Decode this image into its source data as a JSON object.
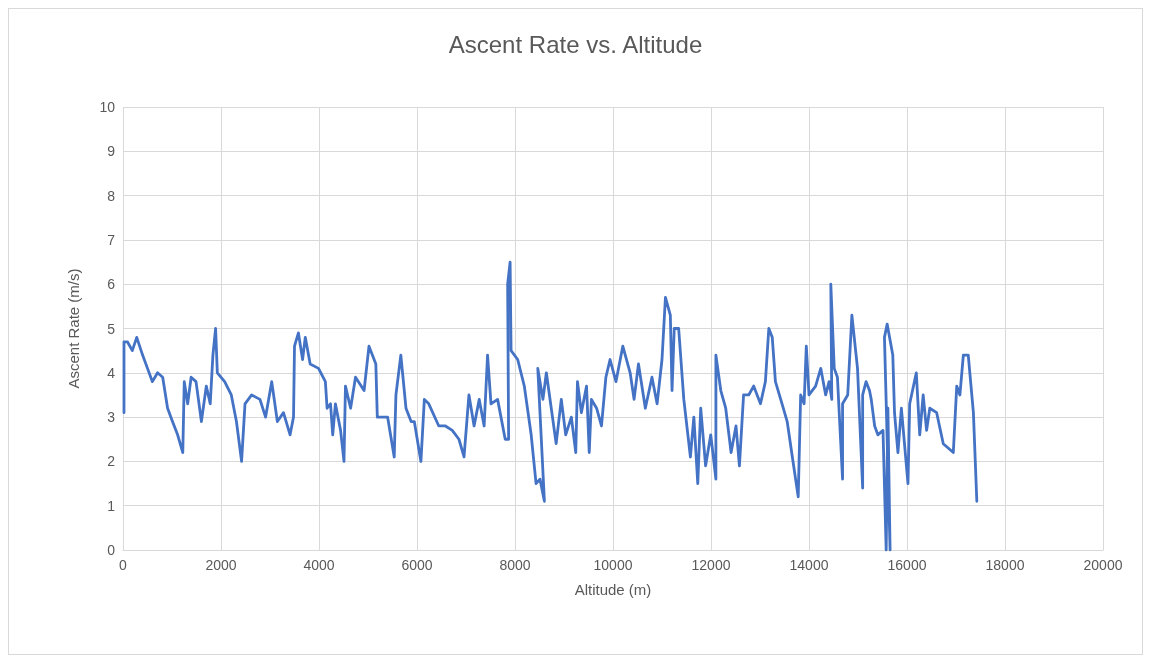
{
  "chart_data": {
    "type": "line",
    "title": "Ascent Rate vs. Altitude",
    "xlabel": "Altitude (m)",
    "ylabel": "Ascent Rate (m/s)",
    "xlim": [
      0,
      20000
    ],
    "ylim": [
      0,
      10
    ],
    "xticks": [
      0,
      2000,
      4000,
      6000,
      8000,
      10000,
      12000,
      14000,
      16000,
      18000,
      20000
    ],
    "yticks": [
      0,
      1,
      2,
      3,
      4,
      5,
      6,
      7,
      8,
      9,
      10
    ],
    "grid": true,
    "marker": "none",
    "line_style": "solid",
    "series": [
      {
        "color": "#4472c4",
        "x": [
          20,
          20,
          90,
          190,
          280,
          400,
          500,
          600,
          705,
          810,
          910,
          1010,
          1115,
          1220,
          1250,
          1320,
          1390,
          1490,
          1600,
          1700,
          1780,
          1835,
          1890,
          1925,
          2075,
          2210,
          2315,
          2420,
          2490,
          2625,
          2795,
          2910,
          3035,
          3150,
          3275,
          3410,
          3480,
          3500,
          3580,
          3665,
          3720,
          3820,
          3990,
          4130,
          4165,
          4235,
          4280,
          4335,
          4440,
          4510,
          4540,
          4645,
          4745,
          4920,
          5020,
          5160,
          5190,
          5400,
          5535,
          5570,
          5670,
          5775,
          5880,
          5945,
          6080,
          6150,
          6240,
          6445,
          6580,
          6720,
          6856,
          6960,
          7060,
          7165,
          7270,
          7370,
          7440,
          7510,
          7645,
          7800,
          7870,
          7850,
          7900,
          7920,
          8055,
          8190,
          8330,
          8430,
          8510,
          8600,
          8465,
          8570,
          8640,
          8740,
          8840,
          8945,
          9035,
          9150,
          9240,
          9275,
          9355,
          9460,
          9515,
          9560,
          9665,
          9765,
          9855,
          9940,
          10060,
          10200,
          10350,
          10430,
          10520,
          10660,
          10795,
          10900,
          11000,
          11070,
          11170,
          11205,
          11250,
          11340,
          11445,
          11580,
          11650,
          11730,
          11790,
          11890,
          11995,
          12100,
          12100,
          12200,
          12300,
          12410,
          12510,
          12580,
          12665,
          12770,
          12870,
          13010,
          13110,
          13180,
          13250,
          13315,
          13450,
          13555,
          13660,
          13780,
          13830,
          13900,
          13945,
          14000,
          14135,
          14240,
          14340,
          14410,
          14465,
          14445,
          14515,
          14580,
          14685,
          14685,
          14790,
          14875,
          14990,
          15095,
          15095,
          15165,
          15235,
          15270,
          15340,
          15405,
          15510,
          15575,
          15610,
          15655,
          15540,
          15595,
          15710,
          15745,
          15815,
          15885,
          16020,
          16055,
          16190,
          16260,
          16330,
          16400,
          16465,
          16605,
          16740,
          16945,
          17015,
          17080,
          17150,
          17250,
          17355,
          17425
        ],
        "values": [
          3.1,
          4.7,
          4.7,
          4.5,
          4.8,
          4.4,
          4.1,
          3.8,
          4.0,
          3.9,
          3.2,
          2.9,
          2.6,
          2.2,
          3.8,
          3.3,
          3.9,
          3.8,
          2.9,
          3.7,
          3.3,
          4.4,
          5.0,
          4.0,
          3.8,
          3.5,
          2.9,
          2.0,
          3.3,
          3.5,
          3.4,
          3.0,
          3.8,
          2.9,
          3.1,
          2.6,
          3.0,
          4.6,
          4.9,
          4.3,
          4.8,
          4.2,
          4.1,
          3.8,
          3.2,
          3.3,
          2.6,
          3.3,
          2.7,
          2.0,
          3.7,
          3.2,
          3.9,
          3.6,
          4.6,
          4.2,
          3.0,
          3.0,
          2.1,
          3.5,
          4.4,
          3.2,
          2.9,
          2.9,
          2.0,
          3.4,
          3.3,
          2.8,
          2.8,
          2.7,
          2.5,
          2.1,
          3.5,
          2.8,
          3.4,
          2.8,
          4.4,
          3.3,
          3.4,
          2.5,
          2.5,
          6.0,
          6.5,
          4.5,
          4.3,
          3.7,
          2.6,
          1.5,
          1.6,
          1.1,
          4.1,
          3.4,
          4.0,
          3.2,
          2.4,
          3.4,
          2.6,
          3.0,
          2.2,
          3.8,
          3.1,
          3.7,
          2.2,
          3.4,
          3.2,
          2.8,
          3.9,
          4.3,
          3.8,
          4.6,
          4.0,
          3.4,
          4.2,
          3.2,
          3.9,
          3.3,
          4.3,
          5.7,
          5.3,
          3.6,
          5.0,
          5.0,
          3.4,
          2.1,
          3.0,
          1.5,
          3.2,
          1.9,
          2.6,
          1.6,
          4.4,
          3.6,
          3.2,
          2.2,
          2.8,
          1.9,
          3.5,
          3.5,
          3.7,
          3.3,
          3.8,
          5.0,
          4.8,
          3.8,
          3.3,
          2.9,
          2.1,
          1.2,
          3.5,
          3.3,
          4.6,
          3.5,
          3.7,
          4.1,
          3.5,
          3.8,
          3.4,
          6.0,
          4.1,
          3.9,
          1.6,
          3.3,
          3.5,
          5.3,
          4.1,
          1.4,
          3.5,
          3.8,
          3.6,
          3.4,
          2.8,
          2.6,
          2.7,
          0,
          3.2,
          0,
          4.8,
          5.1,
          4.4,
          3.1,
          2.2,
          3.2,
          1.5,
          3.3,
          4.0,
          2.6,
          3.5,
          2.7,
          3.2,
          3.1,
          2.4,
          2.2,
          3.7,
          3.5,
          4.4,
          4.4,
          3.1,
          1.1
        ]
      }
    ]
  }
}
